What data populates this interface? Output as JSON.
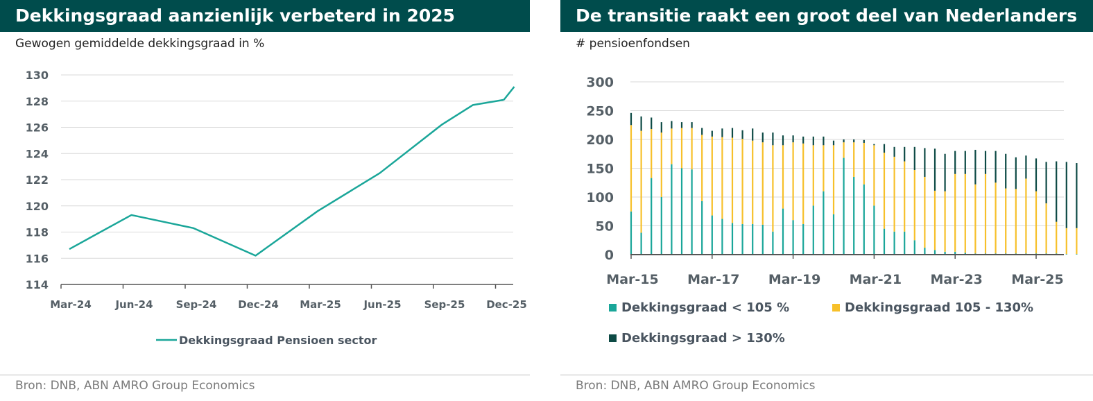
{
  "colors": {
    "title_bg": "#004c4c",
    "teal": "#1aa699",
    "yellow": "#f7c02a",
    "dark": "#0d4a45",
    "grid": "#d9d9d9",
    "axis_text": "#555f66",
    "source": "#7a7a7a"
  },
  "left": {
    "title": "Dekkingsgraad aanzienlijk verbeterd in 2025",
    "subtitle": "Gewogen gemiddelde dekkingsgraad in %",
    "source": "Bron: DNB, ABN AMRO Group Economics",
    "chart_data": {
      "type": "line",
      "title": "Dekkingsgraad aanzienlijk verbeterd in 2025",
      "ylabel": "Gewogen gemiddelde dekkingsgraad in %",
      "xlabel": "",
      "ylim": [
        114,
        130
      ],
      "yticks": [
        "114",
        "116",
        "118",
        "120",
        "122",
        "124",
        "126",
        "128",
        "130"
      ],
      "xticks": [
        "Mar-24",
        "Jun-24",
        "Sep-24",
        "Dec-24",
        "Mar-25",
        "Jun-25",
        "Sep-25",
        "Dec-25"
      ],
      "series": [
        {
          "name": "Dekkingsgraad Pensioen sector",
          "x": [
            0,
            1,
            2,
            3,
            4,
            5,
            6,
            6.5,
            7
          ],
          "values": [
            116.7,
            119.3,
            118.3,
            116.2,
            119.6,
            122.5,
            126.2,
            127.7,
            128.1
          ]
        }
      ],
      "legend": [
        "Dekkingsgraad Pensioen sector"
      ],
      "legend_position": "bottom-center"
    }
  },
  "right": {
    "title": "De transitie raakt een groot deel van Nederlanders",
    "subtitle": "# pensioenfondsen",
    "source": "Bron: DNB, ABN AMRO Group Economics",
    "chart_data": {
      "type": "bar",
      "stacked": true,
      "title": "De transitie raakt een groot deel van Nederlanders",
      "ylabel": "# pensioenfondsen",
      "xlabel": "",
      "ylim": [
        0,
        300
      ],
      "yticks": [
        "0",
        "50",
        "100",
        "150",
        "200",
        "250",
        "300"
      ],
      "xticks": [
        "Mar-15",
        "Mar-17",
        "Mar-19",
        "Mar-21",
        "Mar-23",
        "Mar-25"
      ],
      "xtick_index": [
        0,
        8,
        16,
        24,
        32,
        40
      ],
      "series": [
        {
          "name": "Dekkingsgraad < 105 %",
          "values": [
            75,
            38,
            133,
            100,
            157,
            150,
            148,
            93,
            68,
            62,
            55,
            53,
            53,
            52,
            40,
            80,
            60,
            53,
            85,
            110,
            70,
            168,
            135,
            122,
            85,
            45,
            40,
            40,
            25,
            12,
            8,
            5,
            5,
            3,
            2,
            2,
            2,
            2,
            2,
            2,
            2,
            2,
            2,
            1,
            1
          ]
        },
        {
          "name": "Dekkingsgraad 105 - 130%",
          "values": [
            150,
            177,
            85,
            112,
            62,
            70,
            72,
            115,
            137,
            142,
            148,
            148,
            145,
            143,
            150,
            110,
            135,
            140,
            105,
            80,
            120,
            27,
            60,
            72,
            105,
            132,
            130,
            122,
            122,
            123,
            103,
            105,
            135,
            137,
            120,
            138,
            123,
            113,
            112,
            130,
            108,
            87,
            55,
            45,
            45
          ]
        },
        {
          "name": "Dekkingsgraad > 130%",
          "values": [
            21,
            25,
            20,
            18,
            13,
            10,
            10,
            12,
            10,
            15,
            17,
            15,
            21,
            17,
            22,
            17,
            12,
            12,
            15,
            15,
            8,
            5,
            5,
            5,
            2,
            15,
            17,
            25,
            40,
            50,
            73,
            65,
            40,
            40,
            60,
            40,
            55,
            60,
            55,
            40,
            57,
            72,
            105,
            115,
            113
          ]
        }
      ],
      "legend": [
        "Dekkingsgraad < 105 %",
        "Dekkingsgraad 105 - 130%",
        "Dekkingsgraad > 130%"
      ],
      "legend_position": "bottom"
    }
  }
}
